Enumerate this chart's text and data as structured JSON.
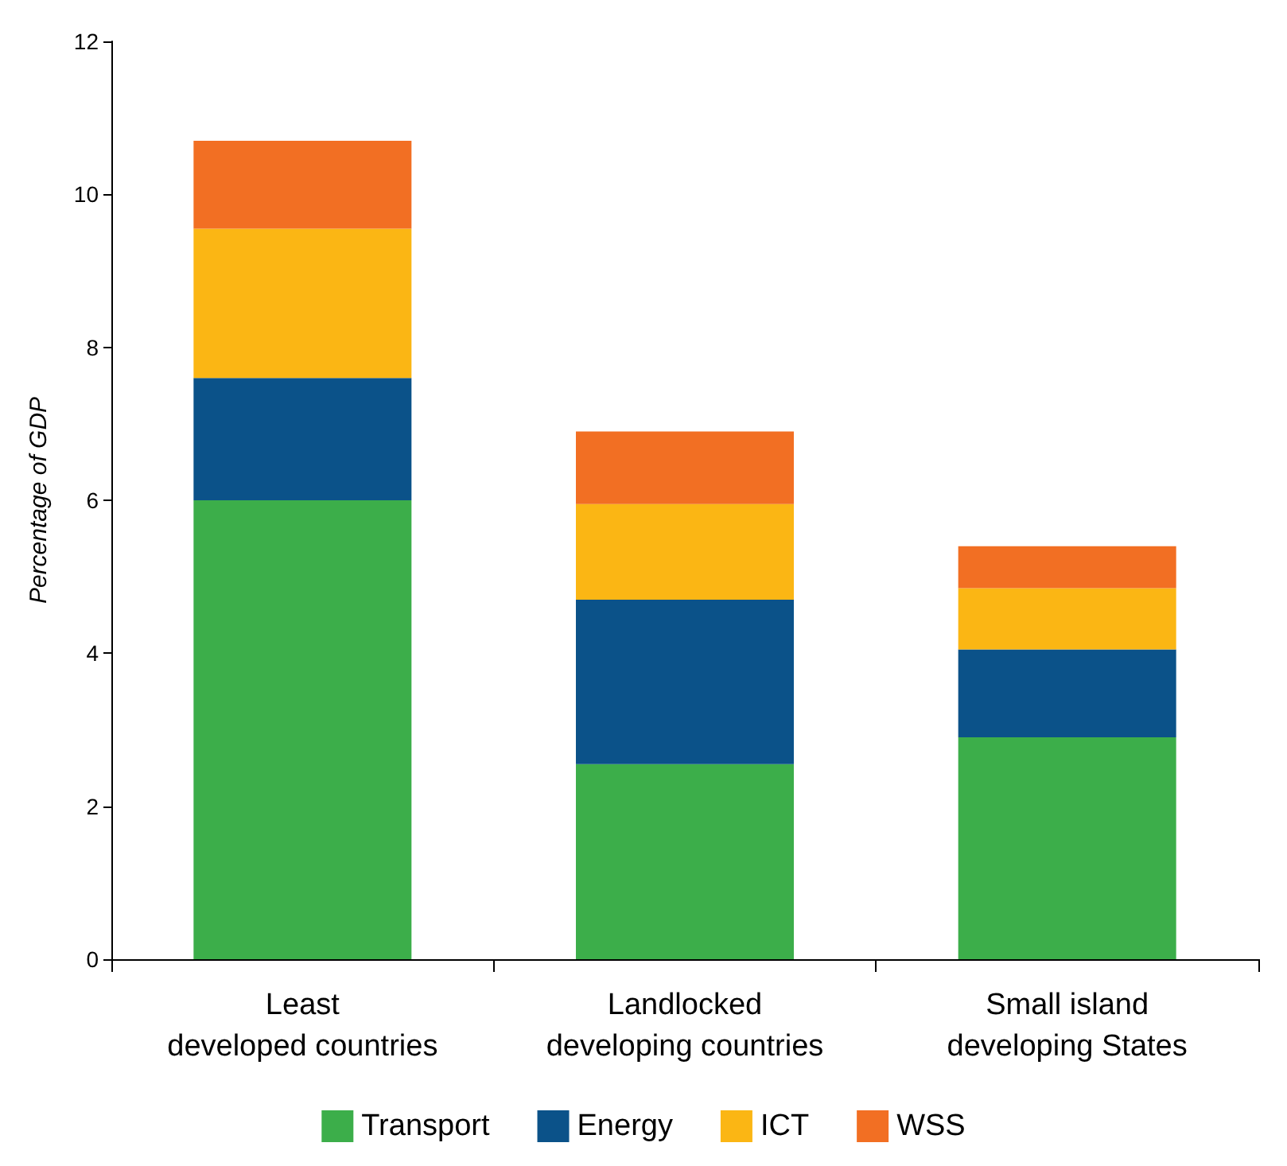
{
  "chart_data": {
    "type": "bar",
    "stacked": true,
    "ylabel": "Percentage of GDP",
    "categories": [
      "Least\ndeveloped countries",
      "Landlocked\ndeveloping countries",
      "Small island\ndeveloping States"
    ],
    "series": [
      {
        "name": "Transport",
        "color": "#3cae4a",
        "values": [
          6.0,
          2.55,
          2.9
        ]
      },
      {
        "name": "Energy",
        "color": "#0b5289",
        "values": [
          1.6,
          2.15,
          1.15
        ]
      },
      {
        "name": "ICT",
        "color": "#fbb614",
        "values": [
          1.95,
          1.25,
          0.8
        ]
      },
      {
        "name": "WSS",
        "color": "#f26f23",
        "values": [
          1.15,
          0.95,
          0.55
        ]
      }
    ],
    "ylim": [
      0,
      12
    ],
    "yticks": [
      0,
      2,
      4,
      6,
      8,
      10,
      12
    ],
    "grid": false,
    "legend": "bottom"
  }
}
